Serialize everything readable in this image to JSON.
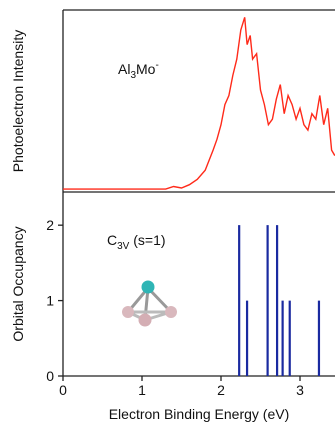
{
  "chart_data": [
    {
      "type": "line",
      "ylabel": "Photoelectron Intensity",
      "annotation": [
        "Al",
        "3",
        "Mo",
        "-"
      ],
      "x": [
        0,
        1.3,
        1.4,
        1.5,
        1.6,
        1.7,
        1.8,
        1.9,
        1.95,
        2.0,
        2.05,
        2.1,
        2.15,
        2.2,
        2.25,
        2.3,
        2.33,
        2.37,
        2.4,
        2.45,
        2.5,
        2.55,
        2.6,
        2.65,
        2.7,
        2.75,
        2.8,
        2.85,
        2.9,
        2.95,
        3.0,
        3.05,
        3.1,
        3.15,
        3.2,
        3.25,
        3.3,
        3.35,
        3.4,
        3.44
      ],
      "values": [
        0.016,
        0.016,
        0.03,
        0.022,
        0.04,
        0.07,
        0.12,
        0.23,
        0.29,
        0.37,
        0.48,
        0.53,
        0.64,
        0.73,
        0.89,
        0.96,
        0.81,
        0.86,
        0.73,
        0.76,
        0.56,
        0.48,
        0.37,
        0.4,
        0.51,
        0.59,
        0.43,
        0.53,
        0.48,
        0.4,
        0.46,
        0.37,
        0.34,
        0.43,
        0.4,
        0.53,
        0.37,
        0.46,
        0.23,
        0.2
      ],
      "color": "#ff2a1a",
      "xlim": [
        0,
        3.44
      ],
      "ylim": [
        0,
        1
      ]
    },
    {
      "type": "stick",
      "ylabel": "Orbital Occupancy",
      "annotation": [
        "C",
        "3V",
        " (s=1)"
      ],
      "xlabel": "Electron Binding Energy (eV)",
      "x": [
        2.23,
        2.33,
        2.59,
        2.71,
        2.78,
        2.87,
        3.24
      ],
      "values": [
        2,
        1,
        2,
        2,
        1,
        1,
        1
      ],
      "color": "#1a2aa0",
      "xlim": [
        0,
        3.44
      ],
      "ylim": [
        0,
        2.44
      ],
      "xticks": [
        0,
        1,
        2,
        3
      ],
      "yticks": [
        0,
        1,
        2
      ]
    }
  ]
}
